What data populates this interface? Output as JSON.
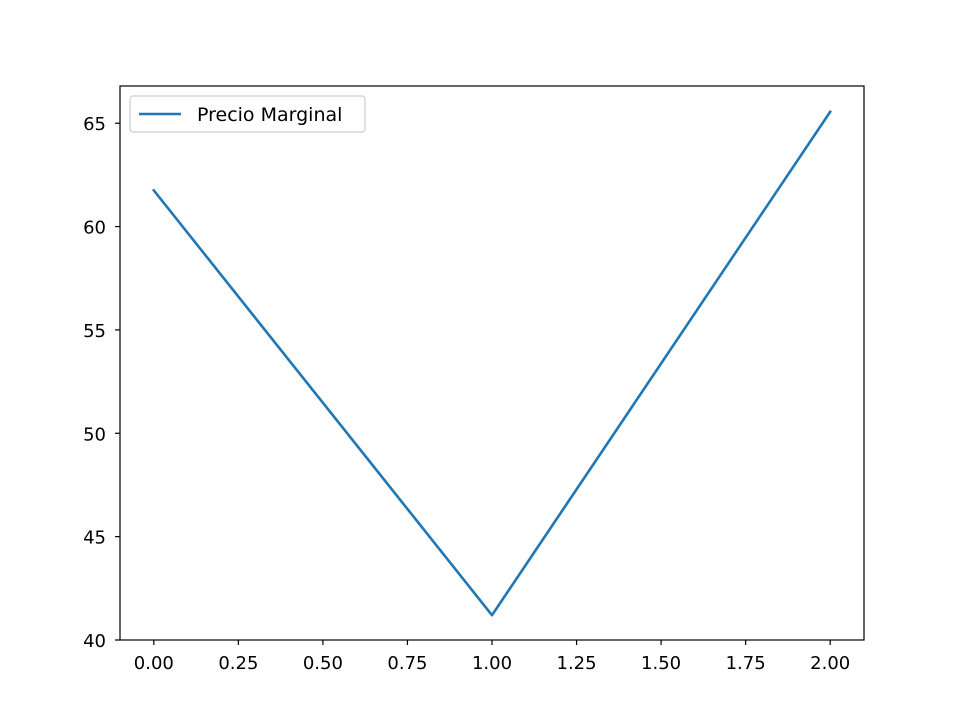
{
  "chart_data": {
    "type": "line",
    "title": "",
    "xlabel": "",
    "ylabel": "",
    "xlim": [
      -0.1,
      2.1
    ],
    "ylim": [
      40,
      66.8
    ],
    "x_ticks": [
      0.0,
      0.25,
      0.5,
      0.75,
      1.0,
      1.25,
      1.5,
      1.75,
      2.0
    ],
    "x_tick_labels": [
      "0.00",
      "0.25",
      "0.50",
      "0.75",
      "1.00",
      "1.25",
      "1.50",
      "1.75",
      "2.00"
    ],
    "y_ticks": [
      40,
      45,
      50,
      55,
      60,
      65
    ],
    "y_tick_labels": [
      "40",
      "45",
      "50",
      "55",
      "60",
      "65"
    ],
    "grid": false,
    "legend_position": "upper-left",
    "series": [
      {
        "name": "Precio Marginal",
        "color": "#1f77b4",
        "x": [
          0,
          1,
          2
        ],
        "y": [
          61.75,
          41.2,
          65.55
        ]
      }
    ]
  }
}
